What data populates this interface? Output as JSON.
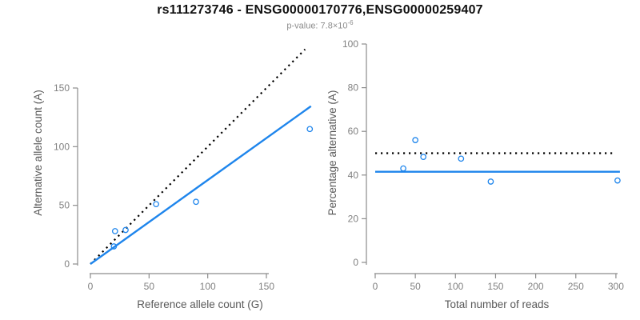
{
  "title": "rs111273746 - ENSG00000170776,ENSG00000259407",
  "p_value": {
    "text": "p-value: 7.8×10",
    "exponent": "-6"
  },
  "colors": {
    "accent_blue": "#1E85EC",
    "line_black": "#000000",
    "axis": "#8C8C8C",
    "tick_label": "#808080",
    "axis_title": "#595959",
    "title": "#111111",
    "subtitle": "#8C8C8C"
  },
  "chart_data": [
    {
      "type": "scatter",
      "panel": "left",
      "xlabel": "Reference allele count (G)",
      "ylabel": "Alternative allele count (A)",
      "xlim": [
        0,
        150
      ],
      "ylim": [
        0,
        150
      ],
      "xticks": [
        0,
        50,
        100,
        150
      ],
      "yticks": [
        0,
        50,
        100,
        150
      ],
      "grid": false,
      "legend": "none",
      "points": [
        [
          20,
          15
        ],
        [
          21,
          28
        ],
        [
          30,
          29
        ],
        [
          56,
          51
        ],
        [
          90,
          53
        ],
        [
          187,
          115
        ]
      ],
      "lines": [
        {
          "name": "identity-line",
          "style": "dotted",
          "color": "#000000",
          "coords": [
            0,
            0,
            183,
            183
          ]
        },
        {
          "name": "fitted-line",
          "style": "solid",
          "color": "#1E85EC",
          "coords": [
            0,
            0,
            188,
            134.5
          ]
        }
      ]
    },
    {
      "type": "scatter",
      "panel": "right",
      "xlabel": "Total number of reads",
      "ylabel": "Percentage alternative (A)",
      "xlim": [
        0,
        300
      ],
      "ylim": [
        0,
        100
      ],
      "xticks": [
        0,
        50,
        100,
        150,
        200,
        250,
        300
      ],
      "yticks": [
        0,
        20,
        40,
        60,
        80,
        100
      ],
      "grid": false,
      "legend": "none",
      "points": [
        [
          35,
          43
        ],
        [
          50,
          56
        ],
        [
          60,
          48.3
        ],
        [
          107,
          47.5
        ],
        [
          144,
          37
        ],
        [
          302,
          37.5
        ]
      ],
      "lines": [
        {
          "name": "expected-50pct-line",
          "style": "dotted",
          "color": "#000000",
          "coords": [
            0,
            50,
            298,
            50
          ]
        },
        {
          "name": "mean-percentage-line",
          "style": "solid",
          "color": "#1E85EC",
          "coords": [
            0,
            41.5,
            305,
            41.5
          ]
        }
      ]
    }
  ]
}
